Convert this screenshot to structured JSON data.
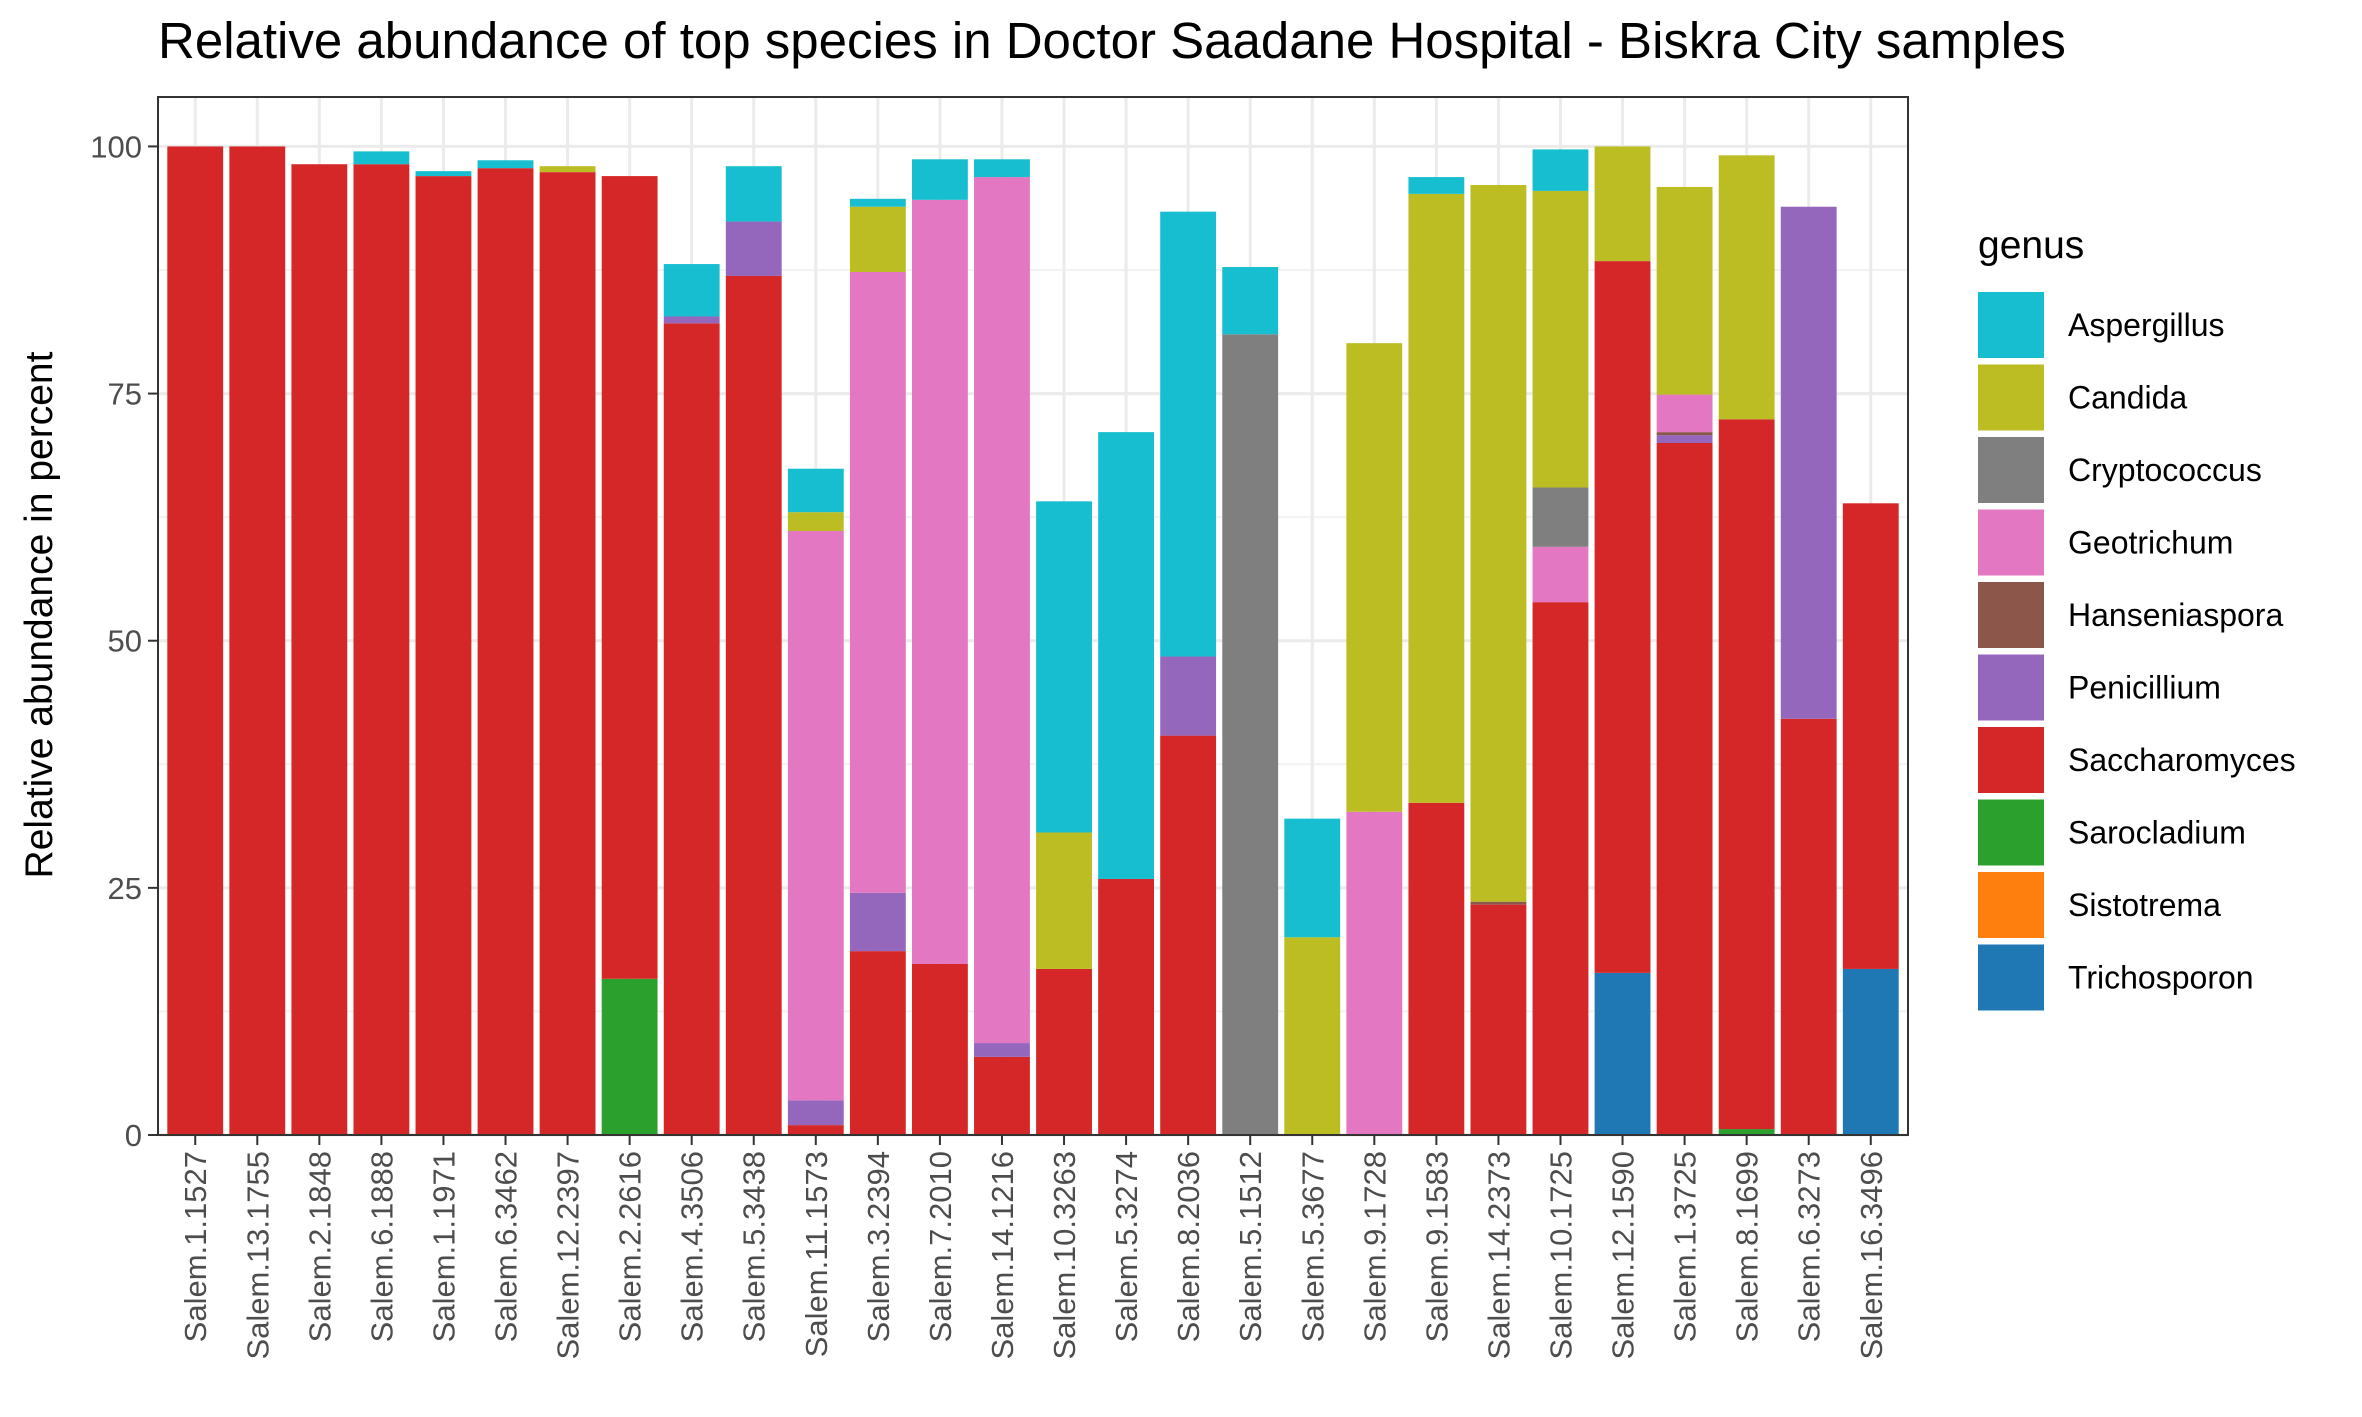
{
  "chart_data": {
    "type": "bar",
    "stacked": true,
    "title": "Relative abundance of top species in Doctor Saadane Hospital - Biskra City  samples",
    "xlabel": "",
    "ylabel": "Relative abundance in percent",
    "ylim": [
      0,
      105
    ],
    "yticks": [
      0,
      25,
      50,
      75,
      100
    ],
    "grid": true,
    "legend": {
      "title": "genus",
      "position": "right"
    },
    "categories": [
      "Salem.1.1527",
      "Salem.13.1755",
      "Salem.2.1848",
      "Salem.6.1888",
      "Salem.1.1971",
      "Salem.6.3462",
      "Salem.12.2397",
      "Salem.2.2616",
      "Salem.4.3506",
      "Salem.5.3438",
      "Salem.11.1573",
      "Salem.3.2394",
      "Salem.7.2010",
      "Salem.14.1216",
      "Salem.10.3263",
      "Salem.5.3274",
      "Salem.8.2036",
      "Salem.5.1512",
      "Salem.5.3677",
      "Salem.9.1728",
      "Salem.9.1583",
      "Salem.14.2373",
      "Salem.10.1725",
      "Salem.12.1590",
      "Salem.1.3725",
      "Salem.8.1699",
      "Salem.6.3273",
      "Salem.16.3496"
    ],
    "stack_order": [
      "Trichosporon",
      "Sistotrema",
      "Sarocladium",
      "Saccharomyces",
      "Penicillium",
      "Hanseniaspora",
      "Geotrichum",
      "Cryptococcus",
      "Candida",
      "Aspergillus"
    ],
    "series": [
      {
        "name": "Aspergillus",
        "color": "#17becf",
        "values": [
          0,
          0,
          0,
          1.3,
          0.5,
          0.8,
          0,
          0,
          5.3,
          5.6,
          4.4,
          0.8,
          4.1,
          1.8,
          33.5,
          45.2,
          45.0,
          6.8,
          12.0,
          0,
          1.7,
          0,
          4.2,
          0,
          0,
          0,
          0,
          0
        ]
      },
      {
        "name": "Candida",
        "color": "#bcbd22",
        "values": [
          0,
          0,
          0,
          0,
          0,
          0,
          0.6,
          0,
          0,
          0,
          1.9,
          6.6,
          0,
          0,
          13.8,
          0,
          0,
          0,
          20.0,
          47.4,
          61.6,
          72.5,
          30.0,
          11.6,
          21.0,
          26.7,
          0,
          0
        ]
      },
      {
        "name": "Cryptococcus",
        "color": "#7f7f7f",
        "values": [
          0,
          0,
          0,
          0,
          0,
          0,
          0,
          0,
          0,
          0,
          0,
          0,
          0,
          0,
          0,
          0,
          0,
          81.0,
          0,
          0,
          0,
          0,
          6.0,
          0,
          0,
          0,
          0,
          0
        ]
      },
      {
        "name": "Geotrichum",
        "color": "#e377c2",
        "values": [
          0,
          0,
          0,
          0,
          0,
          0,
          0,
          0,
          0,
          0,
          57.6,
          62.8,
          77.3,
          87.6,
          0,
          0,
          0,
          0,
          0,
          32.7,
          0,
          0,
          5.6,
          0,
          3.8,
          0,
          0,
          0
        ]
      },
      {
        "name": "Hanseniaspora",
        "color": "#8c564b",
        "values": [
          0,
          0,
          0,
          0,
          0,
          0,
          0,
          0,
          0,
          0,
          0,
          0,
          0,
          0,
          0,
          0,
          0,
          0,
          0,
          0,
          0,
          0.3,
          0,
          0,
          0.3,
          0,
          0,
          0
        ]
      },
      {
        "name": "Penicillium",
        "color": "#9467bd",
        "values": [
          0,
          0,
          0,
          0,
          0,
          0,
          0,
          0,
          0.7,
          5.5,
          2.5,
          5.9,
          0,
          1.4,
          0,
          0,
          8.0,
          0,
          0,
          0,
          0,
          0,
          0,
          0,
          0.8,
          0,
          51.8,
          0
        ]
      },
      {
        "name": "Saccharomyces",
        "color": "#d62728",
        "values": [
          100,
          100,
          98.2,
          98.2,
          97.0,
          97.8,
          97.4,
          81.2,
          82.1,
          86.9,
          1.0,
          18.6,
          17.3,
          7.9,
          16.8,
          25.9,
          40.4,
          0,
          0,
          0,
          33.6,
          23.3,
          53.9,
          72.0,
          70.0,
          71.8,
          42.1,
          47.1
        ]
      },
      {
        "name": "Sarocladium",
        "color": "#2ca02c",
        "values": [
          0,
          0,
          0,
          0,
          0,
          0,
          0,
          15.8,
          0,
          0,
          0,
          0,
          0,
          0,
          0,
          0,
          0,
          0,
          0,
          0,
          0,
          0,
          0,
          0,
          0,
          0.6,
          0,
          0
        ]
      },
      {
        "name": "Sistotrema",
        "color": "#ff7f0e",
        "values": [
          0,
          0,
          0,
          0,
          0,
          0,
          0,
          0,
          0,
          0,
          0,
          0,
          0,
          0,
          0,
          0,
          0,
          0,
          0,
          0,
          0,
          0,
          0,
          0,
          0,
          0,
          0,
          0
        ]
      },
      {
        "name": "Trichosporon",
        "color": "#1f77b4",
        "values": [
          0,
          0,
          0,
          0,
          0,
          0,
          0,
          0,
          0,
          0,
          0,
          0,
          0,
          0,
          0,
          0,
          0,
          0,
          0,
          0,
          0,
          0,
          0,
          16.4,
          0,
          0,
          0,
          16.8
        ]
      }
    ]
  }
}
